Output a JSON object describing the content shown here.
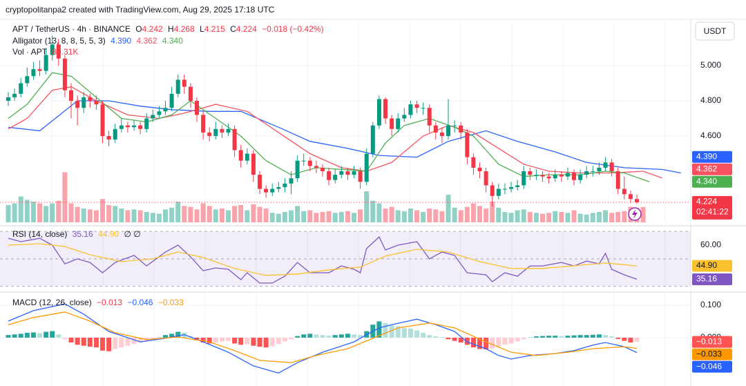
{
  "header": {
    "attribution": "cryptopolitanpa2 created with TradingView.com, Aug 29, 2025 17:18 UTC"
  },
  "chart_data": [
    {
      "type": "candlestick",
      "title": "APT / TetherUS · 4h · BINANCE",
      "ohlc_labels": [
        "O",
        "H",
        "L",
        "C"
      ],
      "change": "−0.018 (−0.42%)",
      "currency": "USDT",
      "countdown": "02:41:22",
      "last_label": "4.224",
      "up_color": "#089981",
      "down_color": "#f23645",
      "xlim": [
        -1.32,
        108.57
      ],
      "ylim": [
        4.098,
        5.255
      ],
      "yticks": [
        {
          "value": 5,
          "label": "5.000"
        },
        {
          "value": 4.8,
          "label": "4.800"
        },
        {
          "value": 4.6,
          "label": "4.600"
        }
      ],
      "open": [
        4.8,
        4.82,
        4.84,
        4.9,
        4.94,
        4.98,
        4.97,
        5.06,
        5.12,
        5.04,
        4.86,
        4.8,
        4.76,
        4.82,
        4.8,
        4.78,
        4.6,
        4.58,
        4.64,
        4.66,
        4.65,
        4.66,
        4.64,
        4.7,
        4.72,
        4.74,
        4.76,
        4.84,
        4.92,
        4.88,
        4.8,
        4.72,
        4.62,
        4.6,
        4.64,
        4.62,
        4.64,
        4.52,
        4.46,
        4.5,
        4.38,
        4.3,
        4.28,
        4.3,
        4.31,
        4.33,
        4.36,
        4.46,
        4.46,
        4.43,
        4.42,
        4.4,
        4.35,
        4.38,
        4.4,
        4.38,
        4.4,
        4.34,
        4.5,
        4.66,
        4.81,
        4.7,
        4.64,
        4.7,
        4.72,
        4.78,
        4.76,
        4.76,
        4.66,
        4.62,
        4.6,
        4.66,
        4.66,
        4.62,
        4.48,
        4.42,
        4.4,
        4.32,
        4.26,
        4.3,
        4.3,
        4.31,
        4.32,
        4.4,
        4.38,
        4.38,
        4.37,
        4.36,
        4.38,
        4.37,
        4.39,
        4.35,
        4.38,
        4.4,
        4.4,
        4.42,
        4.45,
        4.4,
        4.3,
        4.27,
        4.242
      ],
      "high": [
        4.85,
        4.87,
        4.93,
        4.99,
        5.02,
        5.03,
        5.1,
        5.17,
        5.15,
        5.06,
        4.9,
        4.83,
        4.85,
        4.84,
        4.83,
        4.8,
        4.63,
        4.67,
        4.7,
        4.68,
        4.69,
        4.68,
        4.73,
        4.75,
        4.77,
        4.8,
        4.88,
        4.95,
        4.95,
        4.9,
        4.82,
        4.74,
        4.65,
        4.68,
        4.66,
        4.67,
        4.66,
        4.55,
        4.53,
        4.52,
        4.4,
        4.32,
        4.33,
        4.34,
        4.36,
        4.4,
        4.49,
        4.5,
        4.48,
        4.46,
        4.44,
        4.42,
        4.41,
        4.43,
        4.42,
        4.43,
        4.42,
        4.53,
        4.68,
        4.83,
        4.82,
        4.72,
        4.73,
        4.76,
        4.8,
        4.8,
        4.79,
        4.78,
        4.68,
        4.65,
        4.81,
        4.69,
        4.68,
        4.64,
        4.5,
        4.45,
        4.42,
        4.34,
        4.33,
        4.33,
        4.34,
        4.35,
        4.43,
        4.42,
        4.41,
        4.4,
        4.39,
        4.41,
        4.4,
        4.42,
        4.41,
        4.41,
        4.43,
        4.43,
        4.45,
        4.48,
        4.47,
        4.42,
        4.37,
        4.29,
        4.268
      ],
      "low": [
        4.77,
        4.8,
        4.82,
        4.88,
        4.92,
        4.94,
        4.95,
        5.03,
        5.0,
        4.82,
        4.7,
        4.66,
        4.73,
        4.76,
        4.75,
        4.56,
        4.54,
        4.56,
        4.62,
        4.62,
        4.63,
        4.61,
        4.62,
        4.68,
        4.7,
        4.72,
        4.74,
        4.82,
        4.84,
        4.76,
        4.68,
        4.58,
        4.57,
        4.58,
        4.59,
        4.6,
        4.48,
        4.42,
        4.44,
        4.34,
        4.27,
        4.25,
        4.26,
        4.28,
        4.28,
        4.27,
        4.34,
        4.43,
        4.4,
        4.39,
        4.37,
        4.32,
        4.33,
        4.36,
        4.35,
        4.36,
        4.3,
        4.32,
        4.48,
        4.64,
        4.67,
        4.6,
        4.62,
        4.68,
        4.7,
        4.73,
        4.72,
        4.62,
        4.58,
        4.56,
        4.58,
        4.62,
        4.58,
        4.44,
        4.38,
        4.36,
        4.28,
        4.2,
        4.24,
        4.27,
        4.28,
        4.29,
        4.3,
        4.35,
        4.35,
        4.34,
        4.33,
        4.34,
        4.34,
        4.35,
        4.32,
        4.33,
        4.36,
        4.37,
        4.38,
        4.4,
        4.37,
        4.27,
        4.24,
        4.22,
        4.215
      ],
      "close": [
        4.82,
        4.84,
        4.9,
        4.94,
        4.98,
        4.97,
        5.06,
        5.12,
        5.04,
        4.86,
        4.8,
        4.76,
        4.82,
        4.8,
        4.78,
        4.6,
        4.58,
        4.64,
        4.66,
        4.65,
        4.66,
        4.64,
        4.7,
        4.72,
        4.74,
        4.76,
        4.84,
        4.92,
        4.88,
        4.8,
        4.72,
        4.62,
        4.6,
        4.64,
        4.62,
        4.64,
        4.52,
        4.46,
        4.5,
        4.38,
        4.3,
        4.28,
        4.3,
        4.31,
        4.33,
        4.36,
        4.46,
        4.46,
        4.43,
        4.42,
        4.4,
        4.35,
        4.38,
        4.4,
        4.38,
        4.4,
        4.34,
        4.5,
        4.66,
        4.81,
        4.7,
        4.64,
        4.7,
        4.72,
        4.78,
        4.76,
        4.76,
        4.66,
        4.62,
        4.6,
        4.66,
        4.66,
        4.62,
        4.48,
        4.42,
        4.4,
        4.32,
        4.26,
        4.3,
        4.3,
        4.31,
        4.32,
        4.4,
        4.38,
        4.38,
        4.37,
        4.36,
        4.38,
        4.37,
        4.39,
        4.35,
        4.38,
        4.4,
        4.4,
        4.42,
        4.45,
        4.4,
        4.3,
        4.27,
        4.242,
        4.224
      ],
      "indicator": {
        "title": "Alligator (13, 8, 8, 5, 5, 3)",
        "series": [
          {
            "color": "#2962ff",
            "x": [
              0,
              5,
              11,
              16,
              21,
              26,
              32,
              37,
              43,
              48,
              54,
              59,
              65,
              70,
              76,
              81,
              87,
              92,
              98,
              104,
              107
            ],
            "values": [
              4.65,
              4.63,
              4.8,
              4.8,
              4.77,
              4.75,
              4.74,
              4.74,
              4.65,
              4.57,
              4.53,
              4.49,
              4.48,
              4.57,
              4.63,
              4.57,
              4.51,
              4.45,
              4.42,
              4.41,
              4.39
            ],
            "last_label": "4.390"
          },
          {
            "color": "#f7525f",
            "x": [
              0,
              3,
              7,
              10,
              14,
              19,
              24,
              28,
              33,
              38,
              43,
              48,
              53,
              57,
              61,
              66,
              70,
              74,
              78,
              82,
              86,
              91,
              96,
              101,
              104
            ],
            "values": [
              4.64,
              4.7,
              4.86,
              4.88,
              4.8,
              4.72,
              4.7,
              4.73,
              4.78,
              4.74,
              4.62,
              4.5,
              4.42,
              4.4,
              4.45,
              4.6,
              4.66,
              4.62,
              4.53,
              4.44,
              4.4,
              4.39,
              4.39,
              4.4,
              4.362
            ],
            "last_label": "4.362"
          },
          {
            "color": "#4caf50",
            "x": [
              0,
              3,
              7,
              10,
              14,
              18,
              22,
              26,
              29,
              33,
              37,
              41,
              45,
              49,
              53,
              57,
              60,
              63,
              67,
              71,
              74,
              78,
              82,
              86,
              91,
              95,
              98,
              102
            ],
            "values": [
              4.7,
              4.78,
              4.96,
              4.94,
              4.82,
              4.7,
              4.68,
              4.72,
              4.8,
              4.7,
              4.6,
              4.46,
              4.38,
              4.42,
              4.41,
              4.4,
              4.56,
              4.66,
              4.7,
              4.65,
              4.6,
              4.44,
              4.37,
              4.38,
              4.38,
              4.4,
              4.39,
              4.34
            ],
            "last_label": "4.340"
          }
        ]
      },
      "volume": {
        "title": "Vol · APT",
        "last_label": "89.31K",
        "vlim": [
          0,
          1000000
        ],
        "values": [
          100000,
          110000,
          150000,
          130000,
          120000,
          110000,
          95000,
          110000,
          125000,
          290000,
          110000,
          90000,
          80000,
          75000,
          70000,
          135000,
          100000,
          95000,
          80000,
          70000,
          75000,
          70000,
          60000,
          55000,
          50000,
          75000,
          85000,
          120000,
          95000,
          90000,
          75000,
          110000,
          95000,
          75000,
          80000,
          70000,
          95000,
          100000,
          70000,
          105000,
          90000,
          80000,
          55000,
          50000,
          60000,
          70000,
          95000,
          65000,
          70000,
          55000,
          60000,
          65000,
          55000,
          60000,
          65000,
          55000,
          75000,
          180000,
          125000,
          110000,
          80000,
          90000,
          70000,
          65000,
          80000,
          70000,
          60000,
          80000,
          75000,
          65000,
          160000,
          85000,
          70000,
          90000,
          110000,
          95000,
          80000,
          120000,
          85000,
          60000,
          55000,
          70000,
          75000,
          60000,
          55000,
          50000,
          55000,
          65000,
          60000,
          55000,
          70000,
          50000,
          45000,
          55000,
          60000,
          70000,
          55000,
          60000,
          65000,
          90000,
          85000,
          89310
        ]
      }
    },
    {
      "type": "line",
      "title": "RSI (14, close)",
      "legend_note": "∅ ∅",
      "xlim": [
        -1.32,
        108.57
      ],
      "ylim": [
        27.34,
        73.57
      ],
      "yticks": [
        {
          "value": 60,
          "label": "60.00"
        }
      ],
      "band": [
        30,
        70
      ],
      "midline": 50,
      "band_color": "rgba(126,87,194,0.1)",
      "series": [
        {
          "color": "#7e57c2",
          "x": [
            0,
            2,
            5,
            7,
            9,
            11,
            13,
            15,
            17,
            20,
            22,
            25,
            27,
            29,
            31,
            33,
            35,
            37,
            38,
            40,
            42,
            44,
            46,
            48,
            51,
            53,
            55,
            56,
            57,
            59,
            60,
            62,
            65,
            67,
            69,
            71,
            73,
            76,
            77,
            79,
            81,
            83,
            85,
            88,
            90,
            92,
            94,
            95,
            96,
            98,
            100
          ],
          "values": [
            65,
            62.5,
            65,
            60,
            46.4,
            50,
            47.4,
            39.9,
            47.4,
            52.5,
            44.9,
            55,
            60,
            51.5,
            41.4,
            43.4,
            42.4,
            34.9,
            39.9,
            32.4,
            32.4,
            37.4,
            47.4,
            39.9,
            39.9,
            44.9,
            42.4,
            39.9,
            57.5,
            66,
            56.5,
            60,
            62.5,
            50,
            55,
            52.5,
            39.9,
            38.4,
            33.4,
            39.9,
            37.4,
            44.9,
            44.9,
            47.4,
            44.9,
            48.4,
            46.4,
            54,
            42.4,
            38.4,
            35.16
          ],
          "last_label": "35.16"
        },
        {
          "color": "#fbc02d",
          "x": [
            0,
            5,
            9,
            13,
            18,
            23,
            27,
            31,
            36,
            41,
            46,
            51,
            56,
            60,
            65,
            70,
            75,
            80,
            85,
            90,
            95,
            100
          ],
          "values": [
            60,
            61,
            59,
            53,
            48,
            50,
            55,
            51,
            43,
            38,
            39,
            42,
            44,
            52,
            57,
            55,
            48,
            43,
            43,
            45,
            47,
            44.9
          ],
          "last_label": "44.90"
        }
      ]
    },
    {
      "type": "macd",
      "title": "MACD (12, 26, close)",
      "xlim": [
        -1.32,
        108.57
      ],
      "ylim": [
        -0.134,
        0.136
      ],
      "yticks": [
        {
          "value": 0.1,
          "label": "0.100"
        },
        {
          "value": 0,
          "label": "0.000"
        }
      ],
      "histogram": {
        "last_label": "−0.013",
        "colors": [
          "#26a69a",
          "#b2dfdb",
          "#ffcdd2",
          "#ff5252"
        ],
        "values": [
          0.008,
          0.01,
          0.012,
          0.015,
          0.016,
          0.014,
          0.018,
          0.02,
          0.01,
          -0.005,
          -0.015,
          -0.022,
          -0.025,
          -0.028,
          -0.03,
          -0.04,
          -0.042,
          -0.035,
          -0.03,
          -0.025,
          -0.02,
          -0.015,
          -0.01,
          -0.005,
          0.002,
          0.008,
          0.012,
          0.018,
          0.015,
          0.005,
          -0.008,
          -0.015,
          -0.018,
          -0.015,
          -0.012,
          -0.01,
          -0.018,
          -0.022,
          -0.02,
          -0.025,
          -0.028,
          -0.03,
          -0.026,
          -0.02,
          -0.012,
          -0.005,
          0.005,
          0.01,
          0.012,
          0.01,
          0.008,
          0.006,
          0.008,
          0.01,
          0.012,
          0.01,
          0.008,
          0.02,
          0.04,
          0.05,
          0.045,
          0.038,
          0.035,
          0.03,
          0.028,
          0.022,
          0.015,
          0.008,
          0.004,
          0.002,
          -0.005,
          -0.01,
          -0.015,
          -0.022,
          -0.03,
          -0.035,
          -0.036,
          -0.033,
          -0.028,
          -0.022,
          -0.018,
          -0.012,
          -0.005,
          0.002,
          0.004,
          0.005,
          0.006,
          0.006,
          0.005,
          0.006,
          0.007,
          0.008,
          0.008,
          0.009,
          0.01,
          0.008,
          0.004,
          -0.004,
          -0.01,
          -0.015,
          -0.013
        ]
      },
      "series": [
        {
          "color": "#2962ff",
          "x": [
            0,
            4,
            9,
            12,
            16,
            21,
            25,
            28,
            31,
            35,
            39,
            43,
            46,
            50,
            55,
            57,
            59,
            61,
            65,
            68,
            71,
            73,
            76,
            78,
            80,
            83,
            87,
            90,
            93,
            95,
            98,
            100
          ],
          "values": [
            0.051,
            0.083,
            0.104,
            0.072,
            0.019,
            -0.013,
            -0.002,
            0.009,
            -0.013,
            -0.045,
            -0.087,
            -0.109,
            -0.077,
            -0.045,
            -0.013,
            0.009,
            0.03,
            0.04,
            0.057,
            0.04,
            0.019,
            -0.013,
            -0.034,
            -0.055,
            -0.066,
            -0.055,
            -0.049,
            -0.04,
            -0.023,
            -0.015,
            -0.028,
            -0.046
          ],
          "last_label": "−0.046"
        },
        {
          "color": "#ff9800",
          "x": [
            0,
            4,
            9,
            13,
            17,
            22,
            27,
            32,
            36,
            40,
            45,
            49,
            54,
            58,
            62,
            67,
            71,
            76,
            80,
            84,
            89,
            93,
            98,
            100
          ],
          "values": [
            0.04,
            0.062,
            0.079,
            0.051,
            0.015,
            -0.006,
            0.002,
            -0.013,
            -0.04,
            -0.07,
            -0.077,
            -0.055,
            -0.034,
            -0.002,
            0.03,
            0.045,
            0.03,
            -0.013,
            -0.045,
            -0.055,
            -0.045,
            -0.034,
            -0.028,
            -0.033
          ],
          "last_label": "−0.033"
        }
      ]
    }
  ]
}
